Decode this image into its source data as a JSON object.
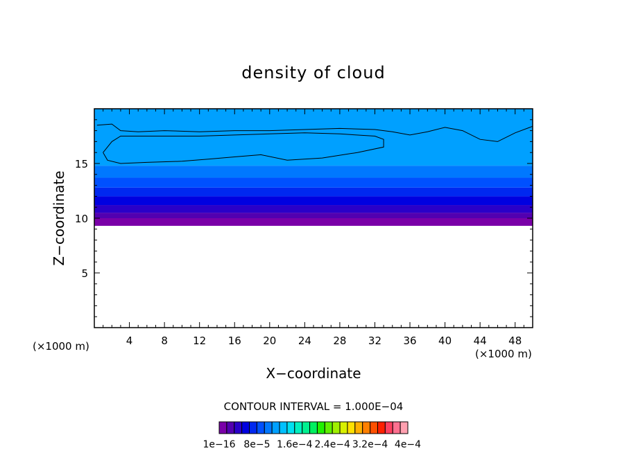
{
  "chart_data": {
    "type": "heatmap",
    "title": "density of cloud",
    "xlabel": "X−coordinate",
    "ylabel": "Z−coordinate",
    "x_unit_left": "(×1000 m)",
    "x_unit_right": "(×1000 m)",
    "xlim": [
      0,
      50
    ],
    "ylim": [
      0,
      20
    ],
    "xticks": [
      4,
      8,
      12,
      16,
      20,
      24,
      28,
      32,
      36,
      40,
      44,
      48
    ],
    "yticks": [
      5,
      10,
      15
    ],
    "contour_interval_text": "CONTOUR INTERVAL = 1.000E−04",
    "colorbar": {
      "labels": [
        "1e−16",
        "8e−5",
        "1.6e−4",
        "2.4e−4",
        "3.2e−4",
        "4e−4"
      ],
      "colors": [
        "#7a00a8",
        "#5200b0",
        "#2a00c8",
        "#0000e0",
        "#0028f0",
        "#0050ff",
        "#0078ff",
        "#00a0ff",
        "#00c0ff",
        "#00e0f0",
        "#00f0c0",
        "#00f090",
        "#00f060",
        "#20f000",
        "#60f000",
        "#a0f000",
        "#d8f000",
        "#ffe000",
        "#ffb000",
        "#ff8000",
        "#ff5000",
        "#ff2000",
        "#ff4060",
        "#ff7090",
        "#ffa0b0"
      ]
    },
    "bands": [
      {
        "z_low": 9.3,
        "z_high": 10.0,
        "color": "#7a00a8"
      },
      {
        "z_low": 10.0,
        "z_high": 10.5,
        "color": "#5200b0"
      },
      {
        "z_low": 10.5,
        "z_high": 11.2,
        "color": "#2a00c8"
      },
      {
        "z_low": 11.2,
        "z_high": 12.0,
        "color": "#0000e0"
      },
      {
        "z_low": 12.0,
        "z_high": 12.8,
        "color": "#0028f0"
      },
      {
        "z_low": 12.8,
        "z_high": 13.7,
        "color": "#0050ff"
      },
      {
        "z_low": 13.7,
        "z_high": 14.8,
        "color": "#0078ff"
      },
      {
        "z_low": 14.8,
        "z_high": 20.0,
        "color": "#00a0ff"
      }
    ],
    "contours": [
      {
        "points": [
          [
            0.3,
            18.5
          ],
          [
            2,
            18.6
          ],
          [
            3,
            18.0
          ],
          [
            5,
            17.9
          ],
          [
            8,
            18.0
          ],
          [
            12,
            17.9
          ],
          [
            16,
            18.0
          ],
          [
            20,
            18.0
          ],
          [
            24,
            18.1
          ],
          [
            28,
            18.2
          ],
          [
            32,
            18.1
          ],
          [
            34,
            17.9
          ],
          [
            36,
            17.6
          ],
          [
            38,
            17.9
          ],
          [
            40,
            18.3
          ],
          [
            42,
            18.0
          ],
          [
            44,
            17.2
          ],
          [
            46,
            17.0
          ],
          [
            48,
            17.8
          ],
          [
            50,
            18.4
          ]
        ]
      },
      {
        "points": [
          [
            1,
            16
          ],
          [
            2,
            17.0
          ],
          [
            3,
            17.5
          ],
          [
            5,
            17.5
          ],
          [
            8,
            17.5
          ],
          [
            12,
            17.5
          ],
          [
            16,
            17.6
          ],
          [
            20,
            17.7
          ],
          [
            24,
            17.8
          ],
          [
            28,
            17.7
          ],
          [
            32,
            17.5
          ],
          [
            33,
            17.2
          ],
          [
            33,
            16.5
          ],
          [
            30,
            16.0
          ],
          [
            26,
            15.5
          ],
          [
            22,
            15.3
          ],
          [
            19,
            15.8
          ],
          [
            16,
            15.6
          ],
          [
            13,
            15.4
          ],
          [
            10,
            15.2
          ],
          [
            6,
            15.1
          ],
          [
            3,
            15.0
          ],
          [
            1.5,
            15.3
          ],
          [
            1,
            16
          ]
        ]
      }
    ],
    "grid": false,
    "legend": "colorbar-bottom"
  }
}
